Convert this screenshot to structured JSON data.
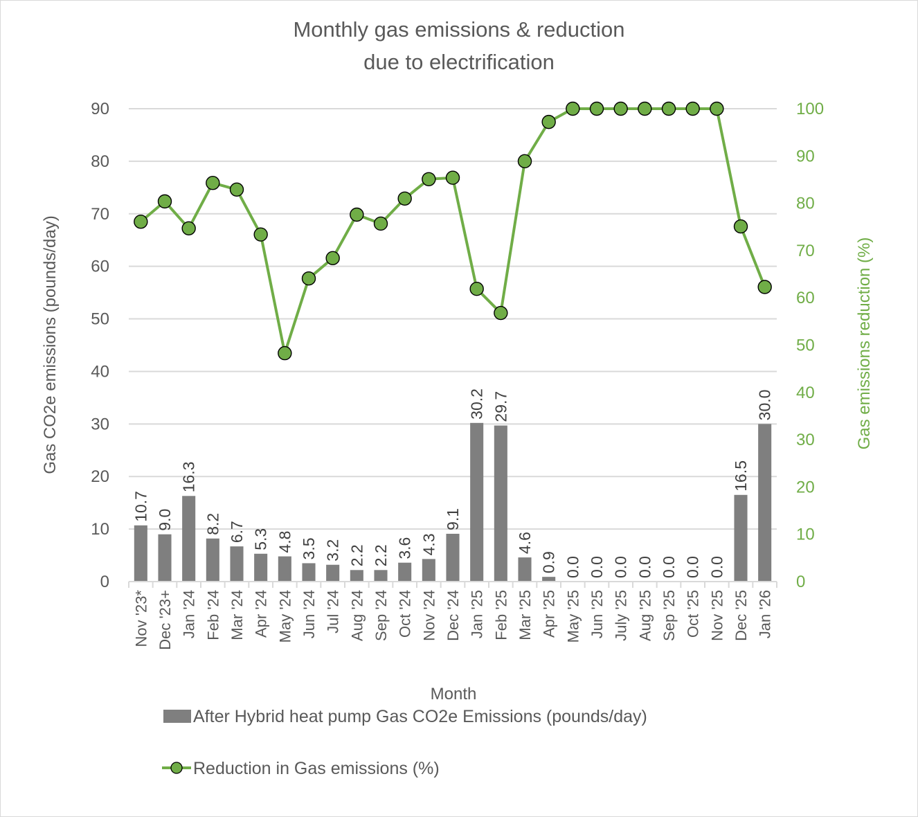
{
  "chart_data": {
    "type": "bar",
    "title_lines": [
      "Monthly gas emissions & reduction",
      "due to electrification"
    ],
    "xlabel": "Month",
    "ylabel": "Gas CO2e emissions (pounds/day)",
    "y2label": "Gas emissions reduction (%)",
    "ylim": [
      0,
      90
    ],
    "y_ticks": [
      0,
      10,
      20,
      30,
      40,
      50,
      60,
      70,
      80,
      90
    ],
    "y2lim": [
      0,
      100
    ],
    "y2_ticks": [
      0,
      10,
      20,
      30,
      40,
      50,
      60,
      70,
      80,
      90,
      100
    ],
    "grid": true,
    "legend_position": "bottom",
    "categories": [
      "Nov '23*",
      "Dec '23+",
      "Jan '24",
      "Feb '24",
      "Mar '24",
      "Apr '24",
      "May '24",
      "Jun '24",
      "Jul '24",
      "Aug '24",
      "Sep '24",
      "Oct '24",
      "Nov '24",
      "Dec '24",
      "Jan '25",
      "Feb '25",
      "Mar '25",
      "Apr '25",
      "May '25",
      "Jun '25",
      "July '25",
      "Aug '25",
      "Sep '25",
      "Oct '25",
      "Nov '25",
      "Dec '25",
      "Jan '26"
    ],
    "series": [
      {
        "name": "After Hybrid heat pump Gas CO2e Emissions (pounds/day)",
        "type": "bar",
        "axis": "left",
        "color": "#7f7f7f",
        "values": [
          10.7,
          9.0,
          16.3,
          8.2,
          6.7,
          5.3,
          4.8,
          3.5,
          3.2,
          2.2,
          2.2,
          3.6,
          4.3,
          9.1,
          30.2,
          29.7,
          4.6,
          0.9,
          0.0,
          0.0,
          0.0,
          0.0,
          0.0,
          0.0,
          0.0,
          16.5,
          30.0
        ],
        "labels": [
          "10.7",
          "9.0",
          "16.3",
          "8.2",
          "6.7",
          "5.3",
          "4.8",
          "3.5",
          "3.2",
          "2.2",
          "2.2",
          "3.6",
          "4.3",
          "9.1",
          "30.2",
          "29.7",
          "4.6",
          "0.9",
          "0.0",
          "0.0",
          "0.0",
          "0.0",
          "0.0",
          "0.0",
          "0.0",
          "16.5",
          "30.0"
        ]
      },
      {
        "name": "Reduction in Gas emissions (%)",
        "type": "line",
        "axis": "right",
        "color": "#70ad47",
        "marker": "circle",
        "values": [
          76.1,
          80.4,
          74.7,
          84.3,
          82.9,
          73.4,
          48.3,
          64.1,
          68.4,
          77.6,
          75.7,
          81.0,
          85.1,
          85.4,
          61.9,
          56.8,
          88.9,
          97.2,
          100,
          100,
          100,
          100,
          100,
          100,
          100,
          75.1,
          62.3
        ]
      }
    ]
  }
}
